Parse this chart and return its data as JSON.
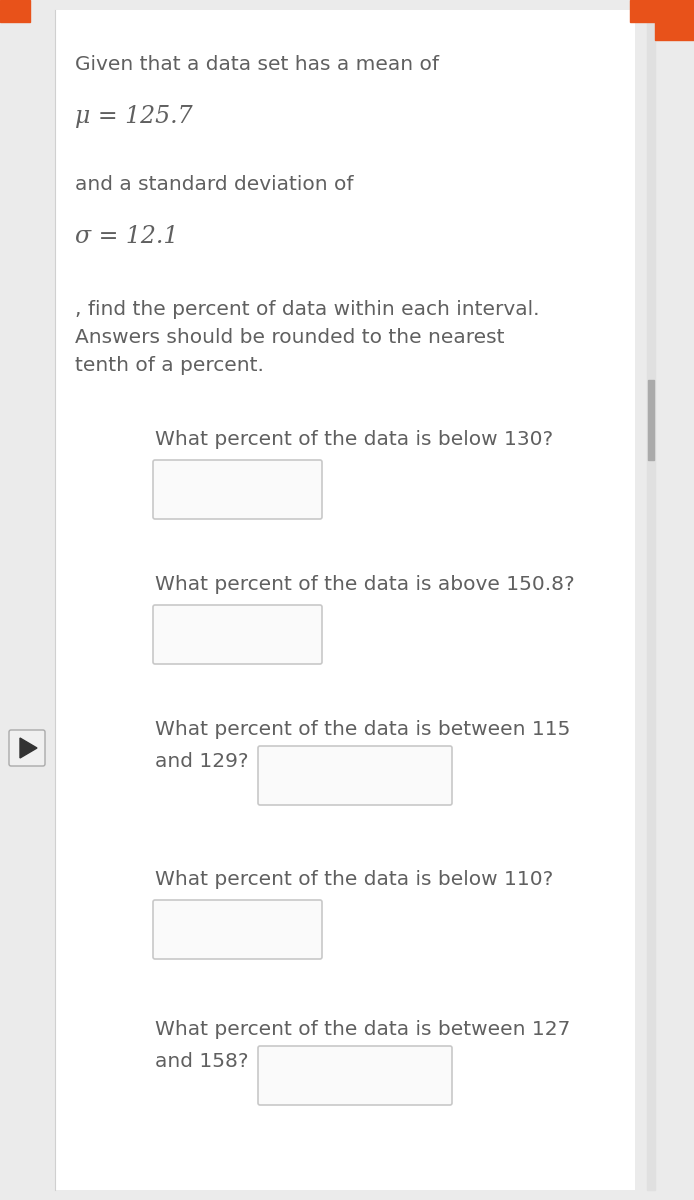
{
  "background_color": "#ebebeb",
  "content_background": "#ffffff",
  "text_color": "#606060",
  "border_color": "#c8c8c8",
  "accent_color": "#e8521a",
  "line1": "Given that a data set has a mean of",
  "line2_math": "μ = 125.7",
  "line3": "and a standard deviation of",
  "line4_math": "σ = 12.1",
  "line5": ", find the percent of data within each interval.",
  "line6": "Answers should be rounded to the nearest",
  "line7": "tenth of a percent.",
  "q1": "What percent of the data is below 130?",
  "q2": "What percent of the data is above 150.8?",
  "q3a": "What percent of the data is between 115",
  "q3b": "and 129?",
  "q4": "What percent of the data is below 110?",
  "q5a": "What percent of the data is between 127",
  "q5b": "and 158?"
}
